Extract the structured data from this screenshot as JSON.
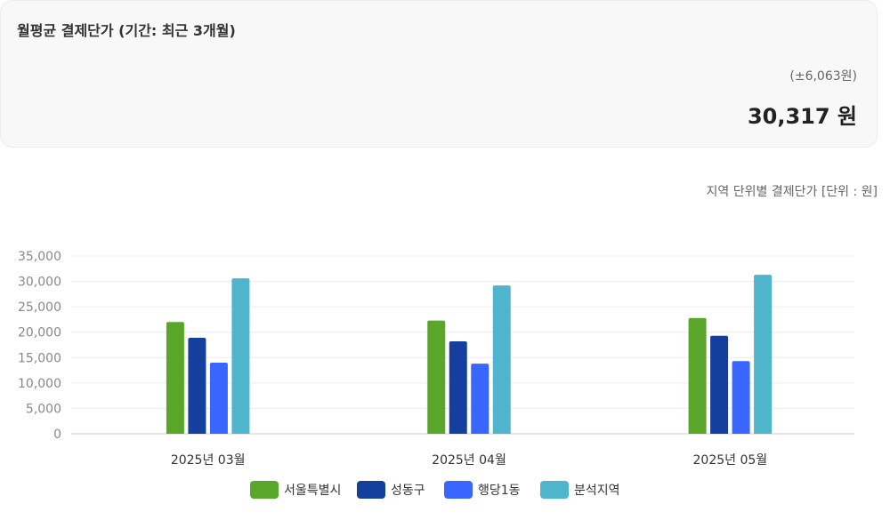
{
  "summary": {
    "title": "월평균 결제단가 (기간: 최근 3개월)",
    "range": "(±6,063원)",
    "value": "30,317 원"
  },
  "chart_caption": "지역 단위별 결제단가 [단위 : 원]",
  "chart_data": {
    "type": "bar",
    "categories": [
      "2025년 03월",
      "2025년 04월",
      "2025년 05월"
    ],
    "series": [
      {
        "name": "서울특별시",
        "color": "#5aa62a",
        "values": [
          22000,
          22300,
          22800
        ]
      },
      {
        "name": "성동구",
        "color": "#153f9d",
        "values": [
          18900,
          18200,
          19300
        ]
      },
      {
        "name": "행당1동",
        "color": "#3a66ff",
        "values": [
          14000,
          13800,
          14300
        ]
      },
      {
        "name": "분석지역",
        "color": "#4fb5cc",
        "values": [
          30600,
          29200,
          31300
        ]
      }
    ],
    "ylim": [
      0,
      35000
    ],
    "yticks": [
      0,
      5000,
      10000,
      15000,
      20000,
      25000,
      30000,
      35000
    ],
    "ytick_labels": [
      "0",
      "5,000",
      "10,000",
      "15,000",
      "20,000",
      "25,000",
      "30,000",
      "35,000"
    ],
    "legend_position": "bottom-center",
    "grid": true
  }
}
